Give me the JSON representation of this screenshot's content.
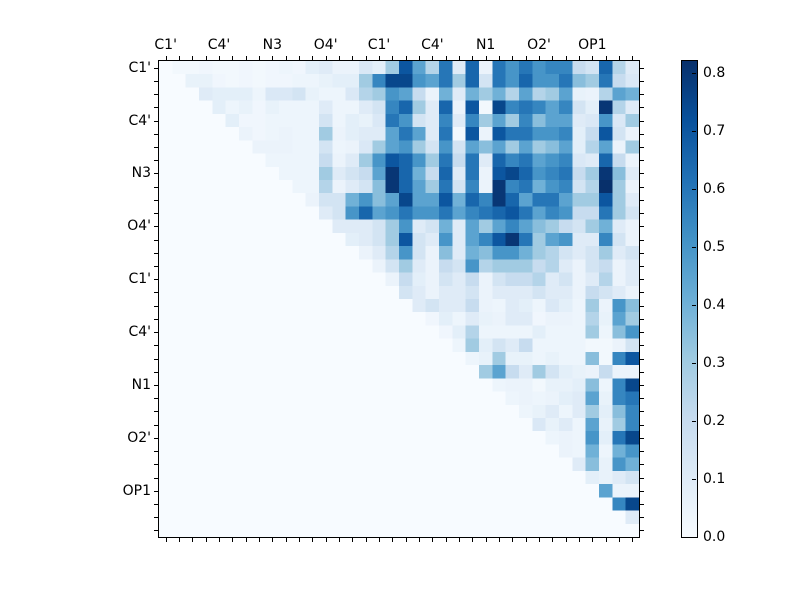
{
  "figure": {
    "background": "#ffffff",
    "plot_background": "#f7fbff"
  },
  "chart_data": {
    "type": "heatmap",
    "title": "",
    "xlabel": "",
    "ylabel": "",
    "n": 36,
    "x_tick_labels": [
      "C1'",
      "C4'",
      "N3",
      "O4'",
      "C1'",
      "C4'",
      "N1",
      "O2'",
      "OP1"
    ],
    "y_tick_labels": [
      "C1'",
      "C4'",
      "N3",
      "O4'",
      "C1'",
      "C4'",
      "N1",
      "O2'",
      "OP1"
    ],
    "label_positions": [
      0,
      4,
      8,
      12,
      16,
      20,
      24,
      28,
      32
    ],
    "grid": false,
    "vmin": 0.0,
    "vmax": 0.82,
    "colorbar": {
      "position": "right",
      "tick_labels": [
        "0.0",
        "0.1",
        "0.2",
        "0.3",
        "0.4",
        "0.5",
        "0.6",
        "0.7",
        "0.8"
      ],
      "tick_values": [
        0.0,
        0.1,
        0.2,
        0.3,
        0.4,
        0.5,
        0.6,
        0.7,
        0.8
      ]
    },
    "colormap": {
      "name": "Blues",
      "anchors": [
        [
          0.0,
          "#f7fbff"
        ],
        [
          0.125,
          "#deebf7"
        ],
        [
          0.25,
          "#c6dbef"
        ],
        [
          0.375,
          "#9ecae1"
        ],
        [
          0.5,
          "#6baed6"
        ],
        [
          0.625,
          "#4292c6"
        ],
        [
          0.75,
          "#2171b5"
        ],
        [
          0.875,
          "#08519c"
        ],
        [
          1.0,
          "#08306b"
        ]
      ]
    },
    "matrix": [
      [
        0,
        0.02,
        0.02,
        0.03,
        0.02,
        0.02,
        0.03,
        0.02,
        0.03,
        0.04,
        0.03,
        0.08,
        0.1,
        0.05,
        0.05,
        0.12,
        0.08,
        0.3,
        0.7,
        0.45,
        0.25,
        0.6,
        0.1,
        0.65,
        0.05,
        0.6,
        0.5,
        0.6,
        0.5,
        0.55,
        0.55,
        0.2,
        0.15,
        0.65,
        0.25,
        0.1
      ],
      [
        0,
        0,
        0.06,
        0.06,
        0.03,
        0.02,
        0.03,
        0.02,
        0.03,
        0.03,
        0.04,
        0.04,
        0.06,
        0.08,
        0.08,
        0.3,
        0.55,
        0.75,
        0.75,
        0.5,
        0.45,
        0.6,
        0.3,
        0.65,
        0.15,
        0.6,
        0.5,
        0.65,
        0.5,
        0.5,
        0.6,
        0.35,
        0.3,
        0.6,
        0.2,
        0.12
      ],
      [
        0,
        0,
        0,
        0.1,
        0.08,
        0.08,
        0.08,
        0.04,
        0.12,
        0.12,
        0.15,
        0.06,
        0.04,
        0.04,
        0.12,
        0.25,
        0.3,
        0.5,
        0.45,
        0.2,
        0.05,
        0.4,
        0.1,
        0.4,
        0.3,
        0.4,
        0.25,
        0.45,
        0.25,
        0.3,
        0.45,
        0.06,
        0.05,
        0.25,
        0.45,
        0.4
      ],
      [
        0,
        0,
        0,
        0,
        0.08,
        0.04,
        0.06,
        0.03,
        0.06,
        0.04,
        0.04,
        0.04,
        0.1,
        0.04,
        0.04,
        0.1,
        0.15,
        0.55,
        0.65,
        0.3,
        0.1,
        0.65,
        0.05,
        0.7,
        0.02,
        0.75,
        0.55,
        0.6,
        0.55,
        0.45,
        0.55,
        0.15,
        0.08,
        0.8,
        0.25,
        0.1
      ],
      [
        0,
        0,
        0,
        0,
        0,
        0.08,
        0.03,
        0.03,
        0.04,
        0.04,
        0.04,
        0.04,
        0.15,
        0.04,
        0.08,
        0.06,
        0.12,
        0.6,
        0.5,
        0.15,
        0.1,
        0.55,
        0.1,
        0.55,
        0.3,
        0.45,
        0.3,
        0.55,
        0.35,
        0.45,
        0.45,
        0.1,
        0.12,
        0.5,
        0.12,
        0.3
      ],
      [
        0,
        0,
        0,
        0,
        0,
        0,
        0.05,
        0.03,
        0.04,
        0.05,
        0.04,
        0.04,
        0.3,
        0.05,
        0.08,
        0.1,
        0.1,
        0.45,
        0.6,
        0.45,
        0.1,
        0.6,
        0.02,
        0.7,
        0.05,
        0.7,
        0.6,
        0.6,
        0.5,
        0.5,
        0.55,
        0.08,
        0.2,
        0.7,
        0.15,
        0.05
      ],
      [
        0,
        0,
        0,
        0,
        0,
        0,
        0,
        0.05,
        0.05,
        0.05,
        0.04,
        0.04,
        0.15,
        0.04,
        0.05,
        0.12,
        0.3,
        0.45,
        0.5,
        0.3,
        0.15,
        0.5,
        0.15,
        0.45,
        0.35,
        0.45,
        0.3,
        0.45,
        0.3,
        0.35,
        0.45,
        0.08,
        0.25,
        0.45,
        0.05,
        0.3
      ],
      [
        0,
        0,
        0,
        0,
        0,
        0,
        0,
        0,
        0.04,
        0.04,
        0.04,
        0.04,
        0.2,
        0.05,
        0.1,
        0.3,
        0.5,
        0.7,
        0.65,
        0.5,
        0.3,
        0.6,
        0.2,
        0.6,
        0.1,
        0.65,
        0.55,
        0.6,
        0.45,
        0.5,
        0.55,
        0.12,
        0.1,
        0.65,
        0.2,
        0.05
      ],
      [
        0,
        0,
        0,
        0,
        0,
        0,
        0,
        0,
        0,
        0.04,
        0.04,
        0.04,
        0.3,
        0.1,
        0.15,
        0.2,
        0.45,
        0.8,
        0.65,
        0.4,
        0.2,
        0.65,
        0.1,
        0.6,
        0.05,
        0.7,
        0.75,
        0.65,
        0.5,
        0.55,
        0.6,
        0.2,
        0.3,
        0.8,
        0.35,
        0.1
      ],
      [
        0,
        0,
        0,
        0,
        0,
        0,
        0,
        0,
        0,
        0,
        0.04,
        0.04,
        0.25,
        0.05,
        0.1,
        0.15,
        0.35,
        0.8,
        0.65,
        0.45,
        0.3,
        0.6,
        0.15,
        0.55,
        0.05,
        0.8,
        0.55,
        0.6,
        0.4,
        0.5,
        0.55,
        0.15,
        0.25,
        0.85,
        0.3,
        0.05
      ],
      [
        0,
        0,
        0,
        0,
        0,
        0,
        0,
        0,
        0,
        0,
        0,
        0.05,
        0.15,
        0.15,
        0.4,
        0.5,
        0.35,
        0.45,
        0.75,
        0.45,
        0.45,
        0.7,
        0.4,
        0.65,
        0.55,
        0.8,
        0.65,
        0.45,
        0.6,
        0.6,
        0.45,
        0.3,
        0.3,
        0.7,
        0.3,
        0.1
      ],
      [
        0,
        0,
        0,
        0,
        0,
        0,
        0,
        0,
        0,
        0,
        0,
        0,
        0.1,
        0.15,
        0.5,
        0.65,
        0.45,
        0.5,
        0.6,
        0.5,
        0.5,
        0.6,
        0.45,
        0.55,
        0.6,
        0.65,
        0.7,
        0.6,
        0.45,
        0.55,
        0.5,
        0.2,
        0.2,
        0.6,
        0.3,
        0.15
      ],
      [
        0,
        0,
        0,
        0,
        0,
        0,
        0,
        0,
        0,
        0,
        0,
        0,
        0,
        0.1,
        0.1,
        0.1,
        0.15,
        0.3,
        0.5,
        0.1,
        0.15,
        0.4,
        0.1,
        0.45,
        0.3,
        0.45,
        0.55,
        0.45,
        0.35,
        0.3,
        0.2,
        0.15,
        0.3,
        0.4,
        0.1,
        0.05
      ],
      [
        0,
        0,
        0,
        0,
        0,
        0,
        0,
        0,
        0,
        0,
        0,
        0,
        0,
        0,
        0.08,
        0.1,
        0.15,
        0.3,
        0.7,
        0.15,
        0.1,
        0.5,
        0.1,
        0.45,
        0.55,
        0.7,
        0.8,
        0.6,
        0.3,
        0.45,
        0.5,
        0.1,
        0.1,
        0.55,
        0.15,
        0.05
      ],
      [
        0,
        0,
        0,
        0,
        0,
        0,
        0,
        0,
        0,
        0,
        0,
        0,
        0,
        0,
        0,
        0.05,
        0.1,
        0.25,
        0.5,
        0.15,
        0.05,
        0.35,
        0.1,
        0.4,
        0.35,
        0.5,
        0.5,
        0.4,
        0.3,
        0.25,
        0.15,
        0.1,
        0.15,
        0.3,
        0.1,
        0.15
      ],
      [
        0,
        0,
        0,
        0,
        0,
        0,
        0,
        0,
        0,
        0,
        0,
        0,
        0,
        0,
        0,
        0,
        0.05,
        0.15,
        0.3,
        0.1,
        0.05,
        0.2,
        0.15,
        0.5,
        0.25,
        0.3,
        0.3,
        0.3,
        0.2,
        0.25,
        0.1,
        0.05,
        0.15,
        0.2,
        0.05,
        0.1
      ],
      [
        0,
        0,
        0,
        0,
        0,
        0,
        0,
        0,
        0,
        0,
        0,
        0,
        0,
        0,
        0,
        0,
        0,
        0.05,
        0.2,
        0.08,
        0.05,
        0.15,
        0.1,
        0.2,
        0.05,
        0.15,
        0.2,
        0.2,
        0.25,
        0.1,
        0.15,
        0.05,
        0.1,
        0.25,
        0.05,
        0.1
      ],
      [
        0,
        0,
        0,
        0,
        0,
        0,
        0,
        0,
        0,
        0,
        0,
        0,
        0,
        0,
        0,
        0,
        0,
        0,
        0.15,
        0.1,
        0.05,
        0.1,
        0.1,
        0.15,
        0.05,
        0.1,
        0.1,
        0.1,
        0.15,
        0.1,
        0.1,
        0.05,
        0.2,
        0.15,
        0.1,
        0.05
      ],
      [
        0,
        0,
        0,
        0,
        0,
        0,
        0,
        0,
        0,
        0,
        0,
        0,
        0,
        0,
        0,
        0,
        0,
        0,
        0,
        0.1,
        0.15,
        0.1,
        0.1,
        0.2,
        0.05,
        0.04,
        0.1,
        0.08,
        0.04,
        0.12,
        0.08,
        0.04,
        0.3,
        0.05,
        0.5,
        0.35
      ],
      [
        0,
        0,
        0,
        0,
        0,
        0,
        0,
        0,
        0,
        0,
        0,
        0,
        0,
        0,
        0,
        0,
        0,
        0,
        0,
        0,
        0.03,
        0.08,
        0.04,
        0.1,
        0.06,
        0.05,
        0.1,
        0.1,
        0.03,
        0.05,
        0.05,
        0.04,
        0.25,
        0.06,
        0.45,
        0.3
      ],
      [
        0,
        0,
        0,
        0,
        0,
        0,
        0,
        0,
        0,
        0,
        0,
        0,
        0,
        0,
        0,
        0,
        0,
        0,
        0,
        0,
        0,
        0.03,
        0.08,
        0.25,
        0.04,
        0.04,
        0.04,
        0.04,
        0.08,
        0.04,
        0.04,
        0.04,
        0.3,
        0.04,
        0.35,
        0.5
      ],
      [
        0,
        0,
        0,
        0,
        0,
        0,
        0,
        0,
        0,
        0,
        0,
        0,
        0,
        0,
        0,
        0,
        0,
        0,
        0,
        0,
        0,
        0,
        0.04,
        0.3,
        0.08,
        0.15,
        0.1,
        0.2,
        0.04,
        0.04,
        0.04,
        0.04,
        0.02,
        0.02,
        0.05,
        0.15
      ],
      [
        0,
        0,
        0,
        0,
        0,
        0,
        0,
        0,
        0,
        0,
        0,
        0,
        0,
        0,
        0,
        0,
        0,
        0,
        0,
        0,
        0,
        0,
        0,
        0.04,
        0.06,
        0.3,
        0.06,
        0.06,
        0.04,
        0.06,
        0.04,
        0.04,
        0.35,
        0.02,
        0.55,
        0.7
      ],
      [
        0,
        0,
        0,
        0,
        0,
        0,
        0,
        0,
        0,
        0,
        0,
        0,
        0,
        0,
        0,
        0,
        0,
        0,
        0,
        0,
        0,
        0,
        0,
        0,
        0.3,
        0.45,
        0.2,
        0.1,
        0.3,
        0.15,
        0.08,
        0.06,
        0.05,
        0.2,
        0.05,
        0.05
      ],
      [
        0,
        0,
        0,
        0,
        0,
        0,
        0,
        0,
        0,
        0,
        0,
        0,
        0,
        0,
        0,
        0,
        0,
        0,
        0,
        0,
        0,
        0,
        0,
        0,
        0,
        0.04,
        0.05,
        0.05,
        0.02,
        0.06,
        0.06,
        0.08,
        0.35,
        0.04,
        0.55,
        0.75
      ],
      [
        0,
        0,
        0,
        0,
        0,
        0,
        0,
        0,
        0,
        0,
        0,
        0,
        0,
        0,
        0,
        0,
        0,
        0,
        0,
        0,
        0,
        0,
        0,
        0,
        0,
        0,
        0.04,
        0.05,
        0.04,
        0.05,
        0.08,
        0.1,
        0.45,
        0.06,
        0.55,
        0.6
      ],
      [
        0,
        0,
        0,
        0,
        0,
        0,
        0,
        0,
        0,
        0,
        0,
        0,
        0,
        0,
        0,
        0,
        0,
        0,
        0,
        0,
        0,
        0,
        0,
        0,
        0,
        0,
        0,
        0.04,
        0.06,
        0.1,
        0.04,
        0.1,
        0.3,
        0.08,
        0.35,
        0.55
      ],
      [
        0,
        0,
        0,
        0,
        0,
        0,
        0,
        0,
        0,
        0,
        0,
        0,
        0,
        0,
        0,
        0,
        0,
        0,
        0,
        0,
        0,
        0,
        0,
        0,
        0,
        0,
        0,
        0,
        0.12,
        0.06,
        0.1,
        0.04,
        0.45,
        0.06,
        0.3,
        0.55
      ],
      [
        0,
        0,
        0,
        0,
        0,
        0,
        0,
        0,
        0,
        0,
        0,
        0,
        0,
        0,
        0,
        0,
        0,
        0,
        0,
        0,
        0,
        0,
        0,
        0,
        0,
        0,
        0,
        0,
        0,
        0.04,
        0.05,
        0.04,
        0.5,
        0.08,
        0.6,
        0.75
      ],
      [
        0,
        0,
        0,
        0,
        0,
        0,
        0,
        0,
        0,
        0,
        0,
        0,
        0,
        0,
        0,
        0,
        0,
        0,
        0,
        0,
        0,
        0,
        0,
        0,
        0,
        0,
        0,
        0,
        0,
        0,
        0.05,
        0.04,
        0.4,
        0.04,
        0.4,
        0.5
      ],
      [
        0,
        0,
        0,
        0,
        0,
        0,
        0,
        0,
        0,
        0,
        0,
        0,
        0,
        0,
        0,
        0,
        0,
        0,
        0,
        0,
        0,
        0,
        0,
        0,
        0,
        0,
        0,
        0,
        0,
        0,
        0,
        0.1,
        0.35,
        0.06,
        0.5,
        0.4
      ],
      [
        0,
        0,
        0,
        0,
        0,
        0,
        0,
        0,
        0,
        0,
        0,
        0,
        0,
        0,
        0,
        0,
        0,
        0,
        0,
        0,
        0,
        0,
        0,
        0,
        0,
        0,
        0,
        0,
        0,
        0,
        0,
        0,
        0.08,
        0.06,
        0.1,
        0.15
      ],
      [
        0,
        0,
        0,
        0,
        0,
        0,
        0,
        0,
        0,
        0,
        0,
        0,
        0,
        0,
        0,
        0,
        0,
        0,
        0,
        0,
        0,
        0,
        0,
        0,
        0,
        0,
        0,
        0,
        0,
        0,
        0,
        0,
        0,
        0.45,
        0.05,
        0.05
      ],
      [
        0,
        0,
        0,
        0,
        0,
        0,
        0,
        0,
        0,
        0,
        0,
        0,
        0,
        0,
        0,
        0,
        0,
        0,
        0,
        0,
        0,
        0,
        0,
        0,
        0,
        0,
        0,
        0,
        0,
        0,
        0,
        0,
        0,
        0,
        0.55,
        0.75
      ],
      [
        0,
        0,
        0,
        0,
        0,
        0,
        0,
        0,
        0,
        0,
        0,
        0,
        0,
        0,
        0,
        0,
        0,
        0,
        0,
        0,
        0,
        0,
        0,
        0,
        0,
        0,
        0,
        0,
        0,
        0,
        0,
        0,
        0,
        0,
        0,
        0.1
      ],
      [
        0,
        0,
        0,
        0,
        0,
        0,
        0,
        0,
        0,
        0,
        0,
        0,
        0,
        0,
        0,
        0,
        0,
        0,
        0,
        0,
        0,
        0,
        0,
        0,
        0,
        0,
        0,
        0,
        0,
        0,
        0,
        0,
        0,
        0,
        0,
        0
      ]
    ]
  }
}
